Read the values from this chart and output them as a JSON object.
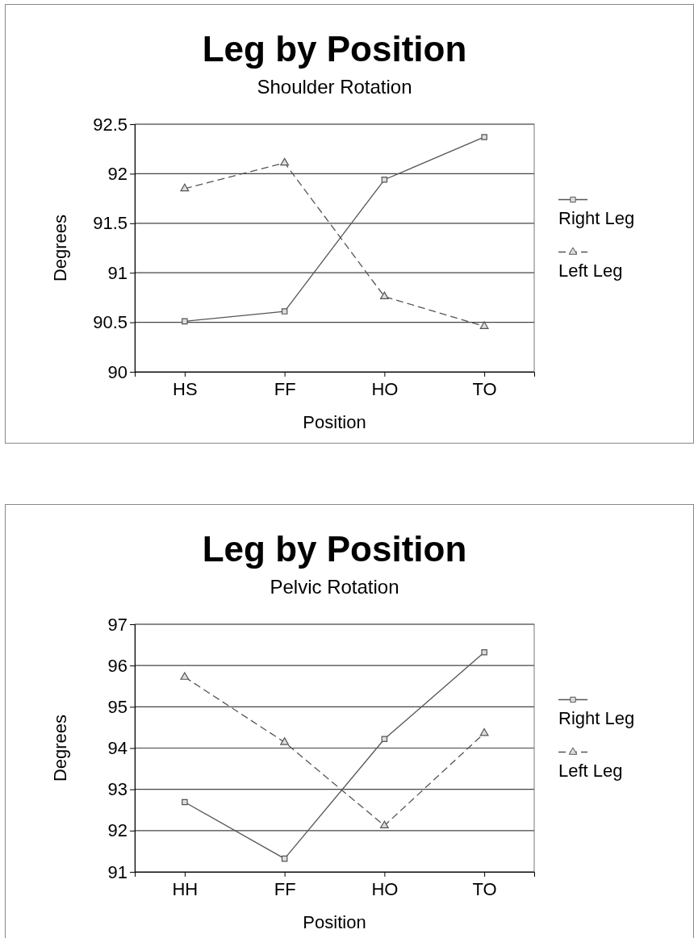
{
  "chart_data": [
    {
      "type": "line",
      "title": "Leg by Position",
      "subtitle": "Shoulder Rotation",
      "xlabel": "Position",
      "ylabel": "Degrees",
      "categories": [
        "HS",
        "FF",
        "HO",
        "TO"
      ],
      "series": [
        {
          "name": "Right Leg",
          "color": "#555555",
          "marker": "square",
          "line_style": "solid",
          "values": [
            90.51,
            90.61,
            91.94,
            92.37
          ]
        },
        {
          "name": "Left Leg",
          "color": "#555555",
          "marker": "triangle",
          "line_style": "dashed",
          "values": [
            91.85,
            92.11,
            90.76,
            90.46
          ]
        }
      ],
      "ylim": [
        90,
        92.5
      ],
      "yticks": [
        90,
        90.5,
        91,
        91.5,
        92,
        92.5
      ],
      "grid": "y",
      "legend": "right"
    },
    {
      "type": "line",
      "title": "Leg by Position",
      "subtitle": "Pelvic Rotation",
      "xlabel": "Position",
      "ylabel": "Degrees",
      "categories": [
        "HH",
        "FF",
        "HO",
        "TO"
      ],
      "series": [
        {
          "name": "Right Leg",
          "color": "#555555",
          "marker": "square",
          "line_style": "solid",
          "values": [
            92.69,
            91.32,
            94.22,
            96.32
          ]
        },
        {
          "name": "Left Leg",
          "color": "#555555",
          "marker": "triangle",
          "line_style": "dashed",
          "values": [
            95.72,
            94.14,
            92.12,
            94.36
          ]
        }
      ],
      "ylim": [
        91,
        97
      ],
      "yticks": [
        91,
        92,
        93,
        94,
        95,
        96,
        97
      ],
      "grid": "y",
      "legend": "right"
    }
  ]
}
